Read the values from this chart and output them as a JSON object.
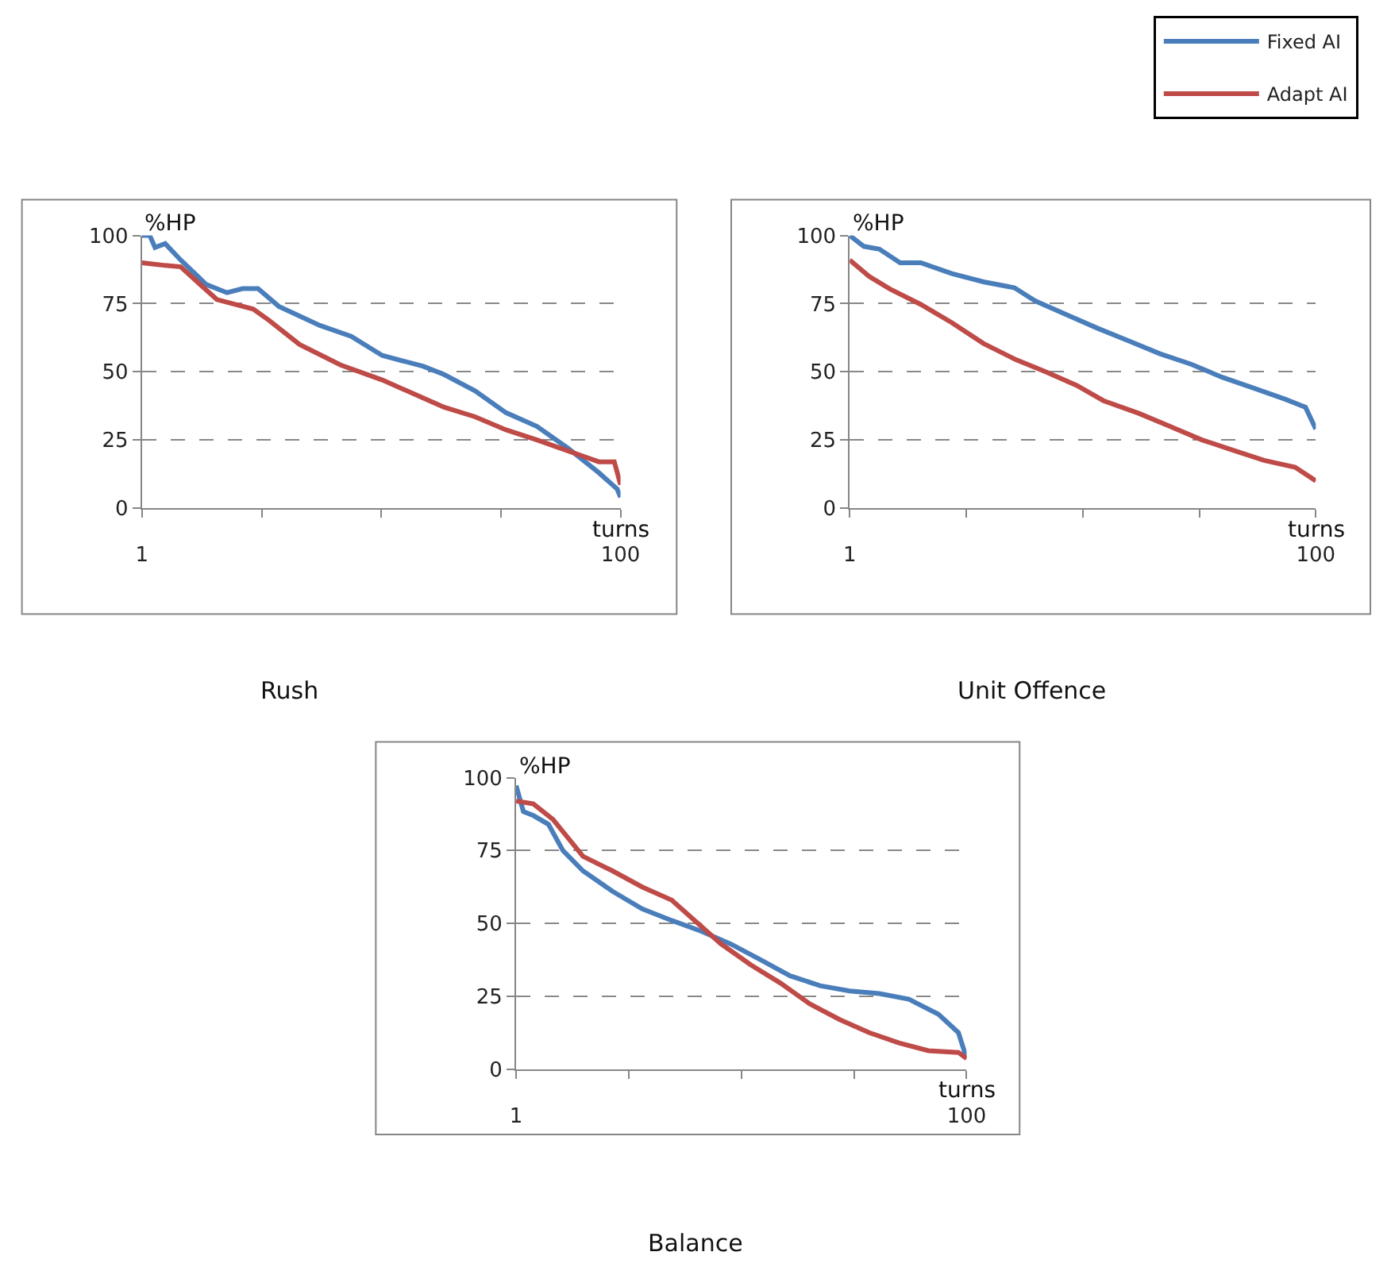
{
  "chart_data": [
    {
      "type": "line",
      "title": "Rush",
      "xlabel": "turns",
      "ylabel": "%HP",
      "xlim": [
        1,
        100
      ],
      "xticks": [
        1,
        {
          "value": 25.75,
          "label": null
        },
        {
          "value": 50.5,
          "label": null
        },
        {
          "value": 75.25,
          "label": null
        },
        100
      ],
      "ylim": [
        0,
        100
      ],
      "yticks": [
        0,
        25,
        50,
        75,
        100
      ],
      "grid": "y",
      "legend": "top right",
      "series": [
        {
          "name": "Fixed AI",
          "color": "#4a7ebb",
          "x": [
            1,
            2.6,
            3.7,
            5.8,
            9,
            14.3,
            18.6,
            21.8,
            25,
            29.3,
            37.8,
            44.3,
            50.7,
            59.2,
            63.5,
            69.9,
            76.3,
            82.7,
            89.1,
            95.5,
            99.3,
            100
          ],
          "values": [
            100,
            100,
            95.6,
            97,
            91,
            82,
            79,
            80.5,
            80.5,
            74,
            67,
            63,
            56,
            52,
            49,
            43,
            35,
            30,
            22,
            13,
            7,
            4
          ]
        },
        {
          "name": "Adapt AI",
          "color": "#be4b48",
          "x": [
            1,
            5.8,
            9,
            14.3,
            16.5,
            24,
            27.2,
            33.6,
            42.1,
            50.7,
            57.1,
            63.5,
            69.9,
            76.3,
            82.7,
            89.1,
            92.3,
            95.5,
            98.7,
            100
          ],
          "values": [
            90,
            89,
            88.5,
            80,
            76.5,
            73,
            69,
            60,
            52.5,
            47,
            42,
            37,
            33.5,
            28.7,
            25,
            21,
            19,
            17,
            17,
            8.6
          ]
        }
      ]
    },
    {
      "type": "line",
      "title": "Unit Offence",
      "xlabel": "turns",
      "ylabel": "%HP",
      "xlim": [
        1,
        100
      ],
      "xticks": [
        1,
        {
          "value": 25.75,
          "label": null
        },
        {
          "value": 50.5,
          "label": null
        },
        {
          "value": 75.25,
          "label": null
        },
        100
      ],
      "ylim": [
        0,
        100
      ],
      "yticks": [
        0,
        25,
        50,
        75,
        100
      ],
      "grid": "y",
      "series": [
        {
          "color": "#4a7ebb",
          "x": [
            1,
            4,
            7.3,
            11.7,
            16.1,
            22.7,
            29.4,
            36,
            40.4,
            47,
            53.6,
            60.3,
            66.9,
            73.5,
            80.1,
            86.8,
            93.4,
            97.8,
            100
          ],
          "values": [
            100,
            96,
            95,
            90,
            90,
            86,
            83,
            80.8,
            76,
            71,
            66,
            61.3,
            56.6,
            52.8,
            48,
            44,
            40,
            37,
            29
          ]
        },
        {
          "color": "#be4b48",
          "x": [
            1,
            5.1,
            9.5,
            16.1,
            22.7,
            29.4,
            36,
            42.6,
            49.2,
            54.9,
            62.5,
            69.1,
            75.7,
            82.3,
            89,
            95.6,
            100
          ],
          "values": [
            91,
            85,
            80.4,
            74.7,
            68,
            60.4,
            54.7,
            50,
            45,
            39.4,
            34.7,
            29.9,
            25.1,
            21.3,
            17.5,
            15,
            10
          ]
        }
      ]
    },
    {
      "type": "line",
      "title": "Balance",
      "xlabel": "turns",
      "ylabel": "%HP",
      "xlim": [
        1,
        100
      ],
      "xticks": [
        1,
        {
          "value": 25.75,
          "label": null
        },
        {
          "value": 50.5,
          "label": null
        },
        {
          "value": 75.25,
          "label": null
        },
        100
      ],
      "ylim": [
        0,
        100
      ],
      "yticks": [
        0,
        25,
        50,
        75,
        100
      ],
      "grid": "y",
      "series": [
        {
          "color": "#4a7ebb",
          "x": [
            1,
            2.6,
            4.8,
            8.1,
            11.3,
            15.7,
            22.2,
            28.7,
            35.2,
            41.7,
            48.2,
            54.7,
            61.2,
            67.8,
            74.3,
            80.8,
            87.3,
            93.8,
            98.2,
            100
          ],
          "values": [
            97.3,
            88.4,
            87,
            84,
            75,
            68,
            61,
            55,
            51,
            47.3,
            42.9,
            37.5,
            32,
            28.6,
            26.8,
            25.9,
            24,
            18.8,
            12.5,
            3.6
          ]
        },
        {
          "color": "#be4b48",
          "x": [
            1,
            4.8,
            9.1,
            15.7,
            22.2,
            28.7,
            35.2,
            39.5,
            46,
            52.6,
            59.1,
            65.6,
            72.1,
            78.6,
            85.1,
            91.6,
            98.2,
            100
          ],
          "values": [
            92,
            91,
            85.7,
            73,
            68,
            62.5,
            58,
            52,
            43,
            35.7,
            29.5,
            22.3,
            17,
            12.5,
            9,
            6.3,
            5.7,
            3.6
          ]
        }
      ]
    }
  ]
}
